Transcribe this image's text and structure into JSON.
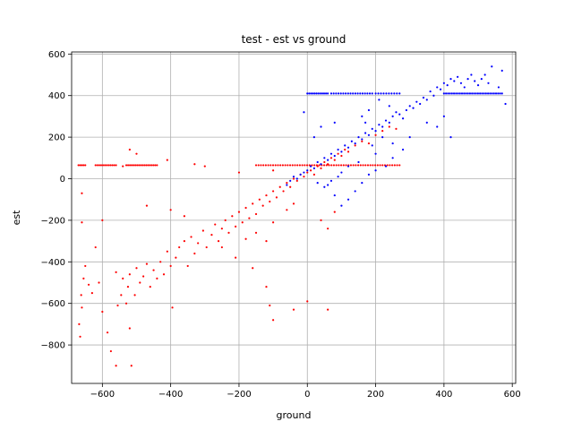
{
  "chart_data": {
    "type": "scatter",
    "title": "test - est vs ground",
    "xlabel": "ground",
    "ylabel": "est",
    "xlim": [
      -690,
      610
    ],
    "ylim": [
      -985,
      610
    ],
    "xticks": [
      -600,
      -400,
      -200,
      0,
      200,
      400,
      600
    ],
    "yticks": [
      -800,
      -600,
      -400,
      -200,
      0,
      200,
      400,
      600
    ],
    "grid": true,
    "legend": "none",
    "colors": {
      "red_series": "#ff0000",
      "blue_series": "#0000ff"
    },
    "series": [
      {
        "color": "#ff0000",
        "points": [
          [
            -665,
            -760
          ],
          [
            -668,
            -700
          ],
          [
            -660,
            -620
          ],
          [
            -662,
            -560
          ],
          [
            -655,
            -480
          ],
          [
            -650,
            -420
          ],
          [
            -640,
            -510
          ],
          [
            -630,
            -550
          ],
          [
            -610,
            -500
          ],
          [
            -600,
            -640
          ],
          [
            -585,
            -740
          ],
          [
            -575,
            -830
          ],
          [
            -560,
            -900
          ],
          [
            -555,
            -610
          ],
          [
            -545,
            -560
          ],
          [
            -530,
            -600
          ],
          [
            -525,
            -520
          ],
          [
            -520,
            -720
          ],
          [
            -515,
            -900
          ],
          [
            -505,
            -560
          ],
          [
            -560,
            -450
          ],
          [
            -540,
            -480
          ],
          [
            -520,
            -460
          ],
          [
            -500,
            -430
          ],
          [
            -490,
            -500
          ],
          [
            -480,
            -470
          ],
          [
            -470,
            -410
          ],
          [
            -460,
            -520
          ],
          [
            -450,
            -440
          ],
          [
            -440,
            -480
          ],
          [
            -430,
            -400
          ],
          [
            -420,
            -460
          ],
          [
            -410,
            -350
          ],
          [
            -400,
            -420
          ],
          [
            -395,
            -620
          ],
          [
            -385,
            -380
          ],
          [
            -375,
            -330
          ],
          [
            -360,
            -300
          ],
          [
            -350,
            -420
          ],
          [
            -340,
            -280
          ],
          [
            -330,
            -360
          ],
          [
            -320,
            -310
          ],
          [
            -305,
            -250
          ],
          [
            -295,
            -330
          ],
          [
            -280,
            -270
          ],
          [
            -270,
            -220
          ],
          [
            -260,
            -300
          ],
          [
            -250,
            -240
          ],
          [
            -240,
            -200
          ],
          [
            -230,
            -260
          ],
          [
            -220,
            -180
          ],
          [
            -210,
            -230
          ],
          [
            -200,
            -160
          ],
          [
            -190,
            -210
          ],
          [
            -180,
            -140
          ],
          [
            -170,
            -190
          ],
          [
            -160,
            -120
          ],
          [
            -150,
            -170
          ],
          [
            -140,
            -100
          ],
          [
            -130,
            -130
          ],
          [
            -120,
            -80
          ],
          [
            -110,
            -110
          ],
          [
            -100,
            -60
          ],
          [
            -90,
            -90
          ],
          [
            -80,
            -40
          ],
          [
            -70,
            -60
          ],
          [
            -60,
            -20
          ],
          [
            -50,
            -40
          ],
          [
            -40,
            0
          ],
          [
            -30,
            -10
          ],
          [
            -20,
            20
          ],
          [
            -10,
            10
          ],
          [
            0,
            30
          ],
          [
            10,
            40
          ],
          [
            20,
            20
          ],
          [
            30,
            60
          ],
          [
            40,
            50
          ],
          [
            50,
            80
          ],
          [
            60,
            70
          ],
          [
            70,
            100
          ],
          [
            80,
            90
          ],
          [
            90,
            120
          ],
          [
            100,
            110
          ],
          [
            110,
            140
          ],
          [
            120,
            130
          ],
          [
            140,
            160
          ],
          [
            160,
            180
          ],
          [
            180,
            170
          ],
          [
            200,
            210
          ],
          [
            220,
            230
          ],
          [
            240,
            250
          ],
          [
            260,
            240
          ],
          [
            -250,
            -330
          ],
          [
            -210,
            -380
          ],
          [
            -180,
            -290
          ],
          [
            -150,
            -260
          ],
          [
            -120,
            -300
          ],
          [
            -100,
            -210
          ],
          [
            -60,
            -150
          ],
          [
            -40,
            -120
          ],
          [
            -160,
            -430
          ],
          [
            -120,
            -520
          ],
          [
            -110,
            -610
          ],
          [
            -100,
            -680
          ],
          [
            -40,
            -630
          ],
          [
            60,
            -240
          ],
          [
            40,
            -200
          ],
          [
            80,
            -160
          ],
          [
            60,
            -630
          ],
          [
            0,
            -590
          ],
          [
            -520,
            140
          ],
          [
            -500,
            120
          ],
          [
            -540,
            60
          ],
          [
            -470,
            -130
          ],
          [
            -600,
            -200
          ],
          [
            -620,
            -330
          ],
          [
            -660,
            -210
          ],
          [
            -660,
            -70
          ],
          [
            -330,
            70
          ],
          [
            -410,
            90
          ],
          [
            -400,
            -150
          ],
          [
            -360,
            -180
          ],
          [
            -300,
            60
          ],
          [
            -200,
            30
          ],
          [
            -100,
            40
          ]
        ],
        "bands": [
          {
            "y": 65,
            "x_from": -670,
            "x_to": -650,
            "count": 5
          },
          {
            "y": 65,
            "x_from": -620,
            "x_to": -560,
            "count": 12
          },
          {
            "y": 65,
            "x_from": -530,
            "x_to": -440,
            "count": 18
          },
          {
            "y": 65,
            "x_from": -150,
            "x_to": 270,
            "count": 60
          }
        ]
      },
      {
        "color": "#0000ff",
        "points": [
          [
            -60,
            -30
          ],
          [
            -50,
            -10
          ],
          [
            -40,
            10
          ],
          [
            -30,
            0
          ],
          [
            -20,
            20
          ],
          [
            -10,
            30
          ],
          [
            0,
            40
          ],
          [
            10,
            60
          ],
          [
            20,
            50
          ],
          [
            30,
            80
          ],
          [
            40,
            70
          ],
          [
            50,
            100
          ],
          [
            60,
            90
          ],
          [
            70,
            120
          ],
          [
            80,
            110
          ],
          [
            90,
            140
          ],
          [
            100,
            130
          ],
          [
            110,
            160
          ],
          [
            120,
            150
          ],
          [
            130,
            180
          ],
          [
            140,
            170
          ],
          [
            150,
            200
          ],
          [
            160,
            190
          ],
          [
            170,
            220
          ],
          [
            180,
            210
          ],
          [
            190,
            240
          ],
          [
            200,
            230
          ],
          [
            210,
            260
          ],
          [
            220,
            250
          ],
          [
            230,
            280
          ],
          [
            240,
            270
          ],
          [
            250,
            300
          ],
          [
            260,
            320
          ],
          [
            270,
            310
          ],
          [
            280,
            290
          ],
          [
            290,
            330
          ],
          [
            300,
            350
          ],
          [
            310,
            340
          ],
          [
            320,
            370
          ],
          [
            330,
            360
          ],
          [
            340,
            390
          ],
          [
            350,
            380
          ],
          [
            360,
            420
          ],
          [
            370,
            400
          ],
          [
            380,
            440
          ],
          [
            390,
            430
          ],
          [
            400,
            460
          ],
          [
            410,
            450
          ],
          [
            420,
            480
          ],
          [
            430,
            470
          ],
          [
            440,
            490
          ],
          [
            450,
            460
          ],
          [
            460,
            440
          ],
          [
            470,
            480
          ],
          [
            480,
            500
          ],
          [
            490,
            470
          ],
          [
            500,
            450
          ],
          [
            510,
            480
          ],
          [
            520,
            500
          ],
          [
            530,
            460
          ],
          [
            540,
            540
          ],
          [
            560,
            440
          ],
          [
            570,
            520
          ],
          [
            580,
            360
          ],
          [
            400,
            300
          ],
          [
            380,
            250
          ],
          [
            420,
            200
          ],
          [
            350,
            270
          ],
          [
            300,
            200
          ],
          [
            280,
            140
          ],
          [
            250,
            100
          ],
          [
            230,
            60
          ],
          [
            200,
            40
          ],
          [
            180,
            20
          ],
          [
            160,
            -20
          ],
          [
            140,
            -60
          ],
          [
            120,
            -100
          ],
          [
            100,
            -130
          ],
          [
            80,
            -80
          ],
          [
            60,
            -30
          ],
          [
            30,
            -20
          ],
          [
            -10,
            320
          ],
          [
            20,
            200
          ],
          [
            40,
            250
          ],
          [
            80,
            270
          ],
          [
            160,
            300
          ],
          [
            180,
            330
          ],
          [
            210,
            380
          ],
          [
            240,
            350
          ],
          [
            170,
            270
          ],
          [
            200,
            120
          ],
          [
            250,
            170
          ],
          [
            220,
            200
          ],
          [
            190,
            160
          ],
          [
            150,
            80
          ],
          [
            120,
            60
          ],
          [
            100,
            30
          ],
          [
            90,
            10
          ],
          [
            70,
            -10
          ],
          [
            50,
            -40
          ]
        ],
        "bands": [
          {
            "y": 410,
            "x_from": 0,
            "x_to": 60,
            "count": 12
          },
          {
            "y": 410,
            "x_from": 70,
            "x_to": 190,
            "count": 18
          },
          {
            "y": 410,
            "x_from": 200,
            "x_to": 270,
            "count": 10
          },
          {
            "y": 410,
            "x_from": 400,
            "x_to": 570,
            "count": 30
          }
        ]
      }
    ]
  }
}
